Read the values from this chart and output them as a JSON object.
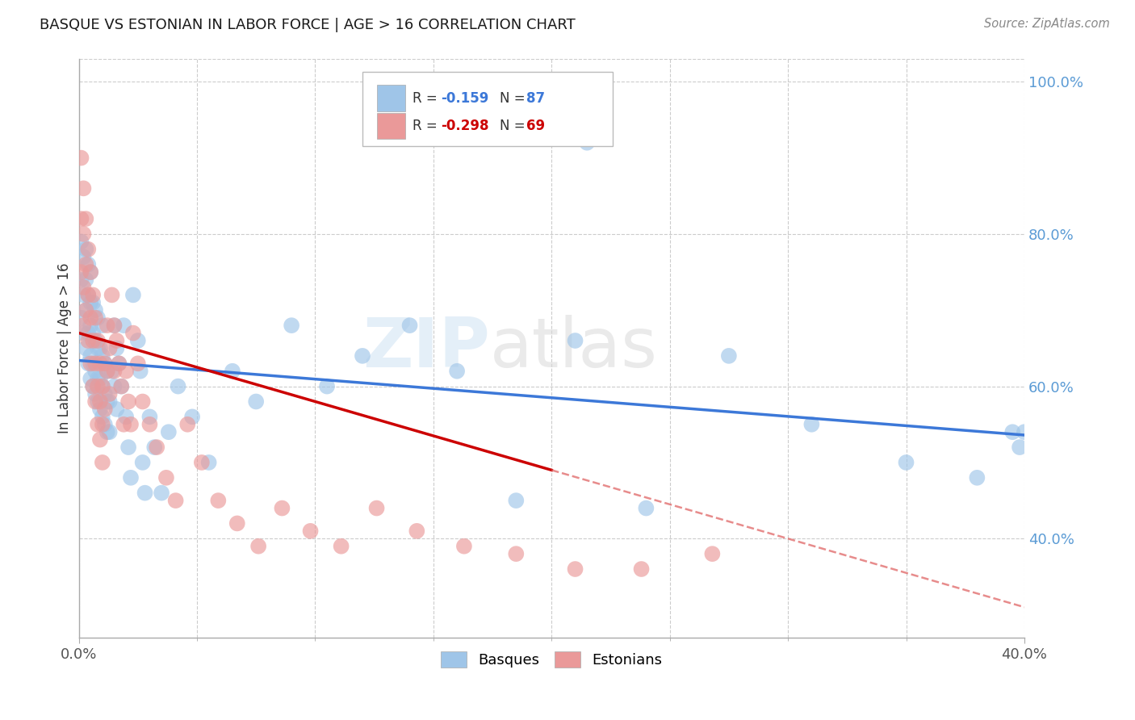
{
  "title": "BASQUE VS ESTONIAN IN LABOR FORCE | AGE > 16 CORRELATION CHART",
  "source": "Source: ZipAtlas.com",
  "ylabel": "In Labor Force | Age > 16",
  "xlim": [
    0.0,
    0.4
  ],
  "ylim": [
    0.27,
    1.03
  ],
  "x_ticks": [
    0.0,
    0.4
  ],
  "x_tick_labels": [
    "0.0%",
    "40.0%"
  ],
  "x_minor_ticks": [
    0.05,
    0.1,
    0.15,
    0.2,
    0.25,
    0.3,
    0.35
  ],
  "y_ticks_right": [
    0.4,
    0.6,
    0.8,
    1.0
  ],
  "y_tick_labels_right": [
    "40.0%",
    "60.0%",
    "80.0%",
    "100.0%"
  ],
  "color_blue": "#9fc5e8",
  "color_pink": "#ea9999",
  "color_trendline_blue": "#3c78d8",
  "color_trendline_pink": "#cc0000",
  "color_trendline_pink_ext": "#e06666",
  "watermark_zip": "ZIP",
  "watermark_atlas": "atlas",
  "background_color": "#ffffff",
  "grid_color": "#cccccc",
  "basque_x": [
    0.001,
    0.001,
    0.001,
    0.002,
    0.002,
    0.002,
    0.003,
    0.003,
    0.003,
    0.003,
    0.004,
    0.004,
    0.004,
    0.004,
    0.005,
    0.005,
    0.005,
    0.005,
    0.005,
    0.006,
    0.006,
    0.006,
    0.006,
    0.007,
    0.007,
    0.007,
    0.007,
    0.008,
    0.008,
    0.008,
    0.008,
    0.009,
    0.009,
    0.009,
    0.01,
    0.01,
    0.01,
    0.01,
    0.011,
    0.011,
    0.011,
    0.012,
    0.012,
    0.012,
    0.013,
    0.013,
    0.014,
    0.015,
    0.015,
    0.016,
    0.016,
    0.017,
    0.018,
    0.019,
    0.02,
    0.021,
    0.022,
    0.023,
    0.025,
    0.026,
    0.027,
    0.028,
    0.03,
    0.032,
    0.035,
    0.038,
    0.042,
    0.048,
    0.055,
    0.065,
    0.075,
    0.09,
    0.105,
    0.12,
    0.14,
    0.16,
    0.185,
    0.21,
    0.24,
    0.275,
    0.31,
    0.35,
    0.38,
    0.395,
    0.398,
    0.4,
    0.215
  ],
  "basque_y": [
    0.69,
    0.74,
    0.79,
    0.67,
    0.72,
    0.77,
    0.65,
    0.7,
    0.74,
    0.78,
    0.63,
    0.67,
    0.72,
    0.76,
    0.61,
    0.64,
    0.68,
    0.71,
    0.75,
    0.6,
    0.63,
    0.67,
    0.71,
    0.59,
    0.62,
    0.66,
    0.7,
    0.58,
    0.61,
    0.65,
    0.69,
    0.57,
    0.61,
    0.65,
    0.56,
    0.6,
    0.64,
    0.68,
    0.55,
    0.59,
    0.63,
    0.54,
    0.58,
    0.62,
    0.54,
    0.58,
    0.62,
    0.6,
    0.68,
    0.57,
    0.65,
    0.63,
    0.6,
    0.68,
    0.56,
    0.52,
    0.48,
    0.72,
    0.66,
    0.62,
    0.5,
    0.46,
    0.56,
    0.52,
    0.46,
    0.54,
    0.6,
    0.56,
    0.5,
    0.62,
    0.58,
    0.68,
    0.6,
    0.64,
    0.68,
    0.62,
    0.45,
    0.66,
    0.44,
    0.64,
    0.55,
    0.5,
    0.48,
    0.54,
    0.52,
    0.54,
    0.92
  ],
  "estonian_x": [
    0.001,
    0.001,
    0.001,
    0.002,
    0.002,
    0.002,
    0.002,
    0.003,
    0.003,
    0.003,
    0.004,
    0.004,
    0.004,
    0.005,
    0.005,
    0.005,
    0.006,
    0.006,
    0.006,
    0.007,
    0.007,
    0.007,
    0.008,
    0.008,
    0.008,
    0.009,
    0.009,
    0.009,
    0.01,
    0.01,
    0.01,
    0.011,
    0.011,
    0.012,
    0.012,
    0.013,
    0.013,
    0.014,
    0.015,
    0.015,
    0.016,
    0.017,
    0.018,
    0.019,
    0.02,
    0.021,
    0.022,
    0.023,
    0.025,
    0.027,
    0.03,
    0.033,
    0.037,
    0.041,
    0.046,
    0.052,
    0.059,
    0.067,
    0.076,
    0.086,
    0.098,
    0.111,
    0.126,
    0.143,
    0.163,
    0.185,
    0.21,
    0.238,
    0.268
  ],
  "estonian_y": [
    0.9,
    0.82,
    0.75,
    0.86,
    0.8,
    0.73,
    0.68,
    0.82,
    0.76,
    0.7,
    0.78,
    0.72,
    0.66,
    0.75,
    0.69,
    0.63,
    0.72,
    0.66,
    0.6,
    0.69,
    0.63,
    0.58,
    0.66,
    0.6,
    0.55,
    0.63,
    0.58,
    0.53,
    0.6,
    0.55,
    0.5,
    0.63,
    0.57,
    0.68,
    0.62,
    0.65,
    0.59,
    0.72,
    0.68,
    0.62,
    0.66,
    0.63,
    0.6,
    0.55,
    0.62,
    0.58,
    0.55,
    0.67,
    0.63,
    0.58,
    0.55,
    0.52,
    0.48,
    0.45,
    0.55,
    0.5,
    0.45,
    0.42,
    0.39,
    0.44,
    0.41,
    0.39,
    0.44,
    0.41,
    0.39,
    0.38,
    0.36,
    0.36,
    0.38
  ],
  "trendline_blue_x0": 0.0,
  "trendline_blue_y0": 0.634,
  "trendline_blue_x1": 0.4,
  "trendline_blue_y1": 0.536,
  "trendline_pink_x0": 0.0,
  "trendline_pink_y0": 0.67,
  "trendline_pink_x1": 0.2,
  "trendline_pink_y1": 0.49,
  "trendline_pink_xend": 0.4,
  "trendline_pink_yend": 0.31
}
